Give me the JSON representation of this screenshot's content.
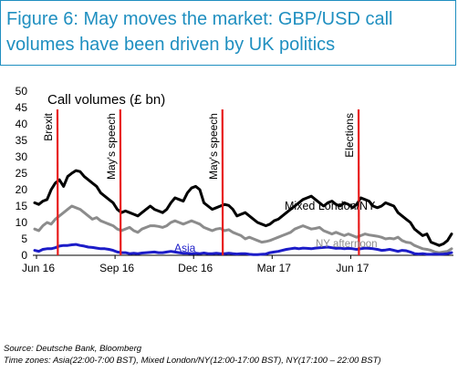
{
  "figure": {
    "title": "Figure 6:  May moves the market: GBP/USD call volumes have been driven by UK politics"
  },
  "chart_data": {
    "type": "line",
    "title": "Call volumes (£ bn)",
    "xlabel": "",
    "ylabel": "",
    "ylim": [
      0,
      50
    ],
    "y_ticks": [
      0,
      5,
      10,
      15,
      20,
      25,
      30,
      35,
      40,
      45,
      50
    ],
    "x_ticks": [
      "Jun 16",
      "Sep 16",
      "Dec 16",
      "Mar 17",
      "Jun 17"
    ],
    "grid": false,
    "series": [
      {
        "name": "Mixed London/NY",
        "color": "#000000",
        "values": [
          16,
          15.5,
          16.5,
          17,
          20,
          22,
          23,
          21,
          24,
          25,
          25.8,
          25.5,
          24,
          23,
          22,
          21,
          19,
          18,
          17,
          16,
          14,
          13,
          13.5,
          13,
          12.5,
          12,
          13,
          14,
          15,
          14,
          13.5,
          13,
          14,
          16,
          17.5,
          17,
          16.5,
          19,
          20.5,
          21,
          20,
          16,
          15,
          14,
          14.5,
          15,
          15.5,
          15.2,
          14,
          12,
          12.5,
          13,
          12,
          11,
          10,
          9.5,
          9,
          9.5,
          10.5,
          11,
          12,
          13,
          14,
          15,
          16,
          17,
          17.5,
          18,
          17,
          16,
          15,
          16,
          16.5,
          15.5,
          15,
          16,
          15.5,
          14.5,
          15.5,
          17.5,
          17,
          16.5,
          15,
          14.5,
          15,
          16,
          15.5,
          15,
          13,
          12,
          11,
          10,
          8,
          7,
          6,
          6.5,
          4,
          3.5,
          3,
          3.5,
          4.5,
          6.5
        ]
      },
      {
        "name": "NY afternoon",
        "color": "#8c8c8c",
        "values": [
          8,
          7.5,
          9,
          10,
          9.5,
          11,
          12,
          13,
          14,
          15,
          14.5,
          14,
          13,
          12,
          11,
          11.5,
          10.5,
          10,
          9.5,
          9,
          8,
          7.5,
          8,
          8.5,
          7.5,
          7,
          8,
          8.5,
          9,
          9,
          8.8,
          8.5,
          9,
          10,
          10.5,
          10,
          9.5,
          10,
          10.5,
          10,
          9.5,
          8.5,
          8,
          7.5,
          8,
          8.2,
          7.5,
          7.8,
          7,
          6.5,
          6,
          5,
          5.5,
          5,
          4.5,
          4,
          4.2,
          4.5,
          5,
          5.5,
          6,
          6.5,
          7,
          8,
          8.5,
          9,
          8.5,
          8,
          8.2,
          8.5,
          7.5,
          7,
          6.5,
          7,
          6.5,
          6,
          6.5,
          6,
          5.5,
          6,
          6.5,
          6.2,
          6,
          5.8,
          5.5,
          5,
          5.2,
          5,
          5.5,
          4.5,
          4,
          3.8,
          3,
          2.5,
          2,
          1.8,
          1.5,
          1,
          0.8,
          1,
          1.2,
          2
        ]
      },
      {
        "name": "Asia",
        "color": "#1c1cc8",
        "values": [
          1.5,
          1.2,
          1.8,
          2,
          2,
          2.3,
          2.8,
          3,
          3,
          3.2,
          3.3,
          3,
          2.8,
          2.5,
          2.4,
          2.2,
          2,
          2,
          1.8,
          1.5,
          1,
          0.8,
          0.8,
          0.5,
          0.6,
          0.5,
          0.7,
          0.8,
          0.9,
          1,
          0.8,
          0.8,
          1,
          1.2,
          1,
          0.8,
          0.6,
          0.6,
          0.5,
          0.6,
          0.5,
          0.7,
          0.5,
          0.5,
          0.6,
          0.5,
          0.5,
          0.6,
          0.5,
          0.4,
          0.5,
          0.5,
          0.3,
          0.2,
          0.2,
          0.3,
          0.4,
          0.8,
          1,
          1.2,
          1.5,
          1.8,
          2,
          2.2,
          2,
          2.2,
          2.1,
          2,
          2.2,
          2.3,
          2.4,
          2.5,
          2.3,
          2.1,
          2.2,
          2,
          2.1,
          2,
          1.8,
          2,
          2.2,
          2.1,
          2,
          1.8,
          1.5,
          1.6,
          1.8,
          1.5,
          1.2,
          1.5,
          1.4,
          1,
          0.5,
          0.4,
          0.5,
          0.3,
          0.3,
          0.4,
          0.3,
          0.4,
          0.5,
          0.8
        ]
      }
    ],
    "series_labels": [
      "Mixed London/NY",
      "NY afternoon",
      "Asia"
    ],
    "event_color": "#e81b1b",
    "events": [
      {
        "label": "Brexit",
        "x_month": 0.8
      },
      {
        "label": "May's speech",
        "x_month": 3.2
      },
      {
        "label": "May's speech",
        "x_month": 7.1
      },
      {
        "label": "Elections",
        "x_month": 12.3
      }
    ]
  },
  "footnotes": {
    "source": "Source: Deutsche Bank, Bloomberg",
    "time_zones": "Time zones: Asia(22:00-7:00 BST),  Mixed London/NY(12:00-17:00 BST), NY(17:100 – 22:00 BST)"
  }
}
